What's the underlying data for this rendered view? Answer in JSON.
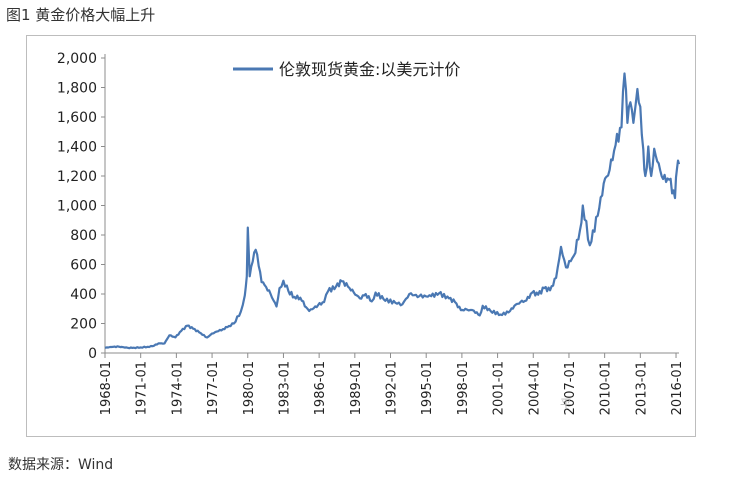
{
  "figure": {
    "title": "图1 黄金价格大幅上升",
    "source": "数据来源：Wind",
    "watermark": "平"
  },
  "chart_data": {
    "type": "line",
    "title": "",
    "xlabel": "",
    "ylabel": "",
    "ylim": [
      0,
      2000
    ],
    "y_ticks": [
      "0",
      "200",
      "400",
      "600",
      "800",
      "1,000",
      "1,200",
      "1,400",
      "1,600",
      "1,800",
      "2,000"
    ],
    "x_range": [
      "1968-01",
      "2016-04"
    ],
    "x_ticks": [
      "1968-01",
      "1971-01",
      "1974-01",
      "1977-01",
      "1980-01",
      "1983-01",
      "1986-01",
      "1989-01",
      "1992-01",
      "1995-01",
      "1998-01",
      "2001-01",
      "2004-01",
      "2007-01",
      "2010-01",
      "2013-01",
      "2016-01"
    ],
    "grid": false,
    "legend_position": "top-center",
    "series": [
      {
        "name": "伦敦现货黄金:以美元计价",
        "color": "#4a78b3",
        "points": [
          [
            "1968-01",
            35
          ],
          [
            "1968-06",
            41
          ],
          [
            "1969-03",
            43
          ],
          [
            "1969-12",
            35
          ],
          [
            "1970-06",
            36
          ],
          [
            "1971-01",
            38
          ],
          [
            "1971-08",
            42
          ],
          [
            "1972-01",
            46
          ],
          [
            "1972-07",
            65
          ],
          [
            "1973-01",
            65
          ],
          [
            "1973-06",
            120
          ],
          [
            "1973-12",
            106
          ],
          [
            "1974-06",
            150
          ],
          [
            "1974-12",
            185
          ],
          [
            "1975-06",
            165
          ],
          [
            "1975-12",
            140
          ],
          [
            "1976-08",
            105
          ],
          [
            "1977-01",
            132
          ],
          [
            "1977-12",
            162
          ],
          [
            "1978-06",
            183
          ],
          [
            "1978-11",
            200
          ],
          [
            "1979-06",
            280
          ],
          [
            "1979-10",
            390
          ],
          [
            "1979-12",
            520
          ],
          [
            "1980-01",
            850
          ],
          [
            "1980-03",
            520
          ],
          [
            "1980-06",
            620
          ],
          [
            "1980-09",
            700
          ],
          [
            "1980-12",
            590
          ],
          [
            "1981-03",
            480
          ],
          [
            "1981-06",
            460
          ],
          [
            "1981-12",
            400
          ],
          [
            "1982-06",
            315
          ],
          [
            "1982-09",
            440
          ],
          [
            "1983-01",
            490
          ],
          [
            "1983-06",
            420
          ],
          [
            "1983-12",
            380
          ],
          [
            "1984-06",
            375
          ],
          [
            "1984-12",
            310
          ],
          [
            "1985-03",
            285
          ],
          [
            "1985-12",
            325
          ],
          [
            "1986-06",
            345
          ],
          [
            "1986-10",
            420
          ],
          [
            "1987-06",
            450
          ],
          [
            "1987-12",
            486
          ],
          [
            "1988-06",
            450
          ],
          [
            "1988-12",
            410
          ],
          [
            "1989-06",
            370
          ],
          [
            "1989-12",
            400
          ],
          [
            "1990-06",
            350
          ],
          [
            "1990-10",
            410
          ],
          [
            "1991-06",
            365
          ],
          [
            "1992-06",
            340
          ],
          [
            "1993-01",
            330
          ],
          [
            "1993-08",
            400
          ],
          [
            "1994-06",
            385
          ],
          [
            "1995-06",
            385
          ],
          [
            "1996-02",
            405
          ],
          [
            "1996-12",
            370
          ],
          [
            "1997-06",
            345
          ],
          [
            "1997-12",
            290
          ],
          [
            "1998-06",
            295
          ],
          [
            "1999-01",
            287
          ],
          [
            "1999-07",
            255
          ],
          [
            "1999-10",
            320
          ],
          [
            "2000-06",
            285
          ],
          [
            "2001-04",
            260
          ],
          [
            "2001-12",
            275
          ],
          [
            "2002-06",
            320
          ],
          [
            "2002-12",
            345
          ],
          [
            "2003-06",
            355
          ],
          [
            "2003-12",
            410
          ],
          [
            "2004-06",
            395
          ],
          [
            "2004-12",
            440
          ],
          [
            "2005-06",
            425
          ],
          [
            "2005-12",
            510
          ],
          [
            "2006-05",
            720
          ],
          [
            "2006-10",
            580
          ],
          [
            "2007-06",
            660
          ],
          [
            "2007-12",
            830
          ],
          [
            "2008-03",
            1000
          ],
          [
            "2008-10",
            730
          ],
          [
            "2009-06",
            930
          ],
          [
            "2009-12",
            1150
          ],
          [
            "2010-06",
            1240
          ],
          [
            "2010-12",
            1410
          ],
          [
            "2011-06",
            1530
          ],
          [
            "2011-09",
            1895
          ],
          [
            "2011-12",
            1560
          ],
          [
            "2012-03",
            1700
          ],
          [
            "2012-06",
            1560
          ],
          [
            "2012-10",
            1790
          ],
          [
            "2013-01",
            1670
          ],
          [
            "2013-04",
            1380
          ],
          [
            "2013-06",
            1200
          ],
          [
            "2013-09",
            1400
          ],
          [
            "2013-12",
            1200
          ],
          [
            "2014-03",
            1385
          ],
          [
            "2014-06",
            1300
          ],
          [
            "2014-12",
            1180
          ],
          [
            "2015-06",
            1175
          ],
          [
            "2015-12",
            1050
          ],
          [
            "2016-02",
            1250
          ],
          [
            "2016-04",
            1280
          ]
        ]
      }
    ]
  }
}
